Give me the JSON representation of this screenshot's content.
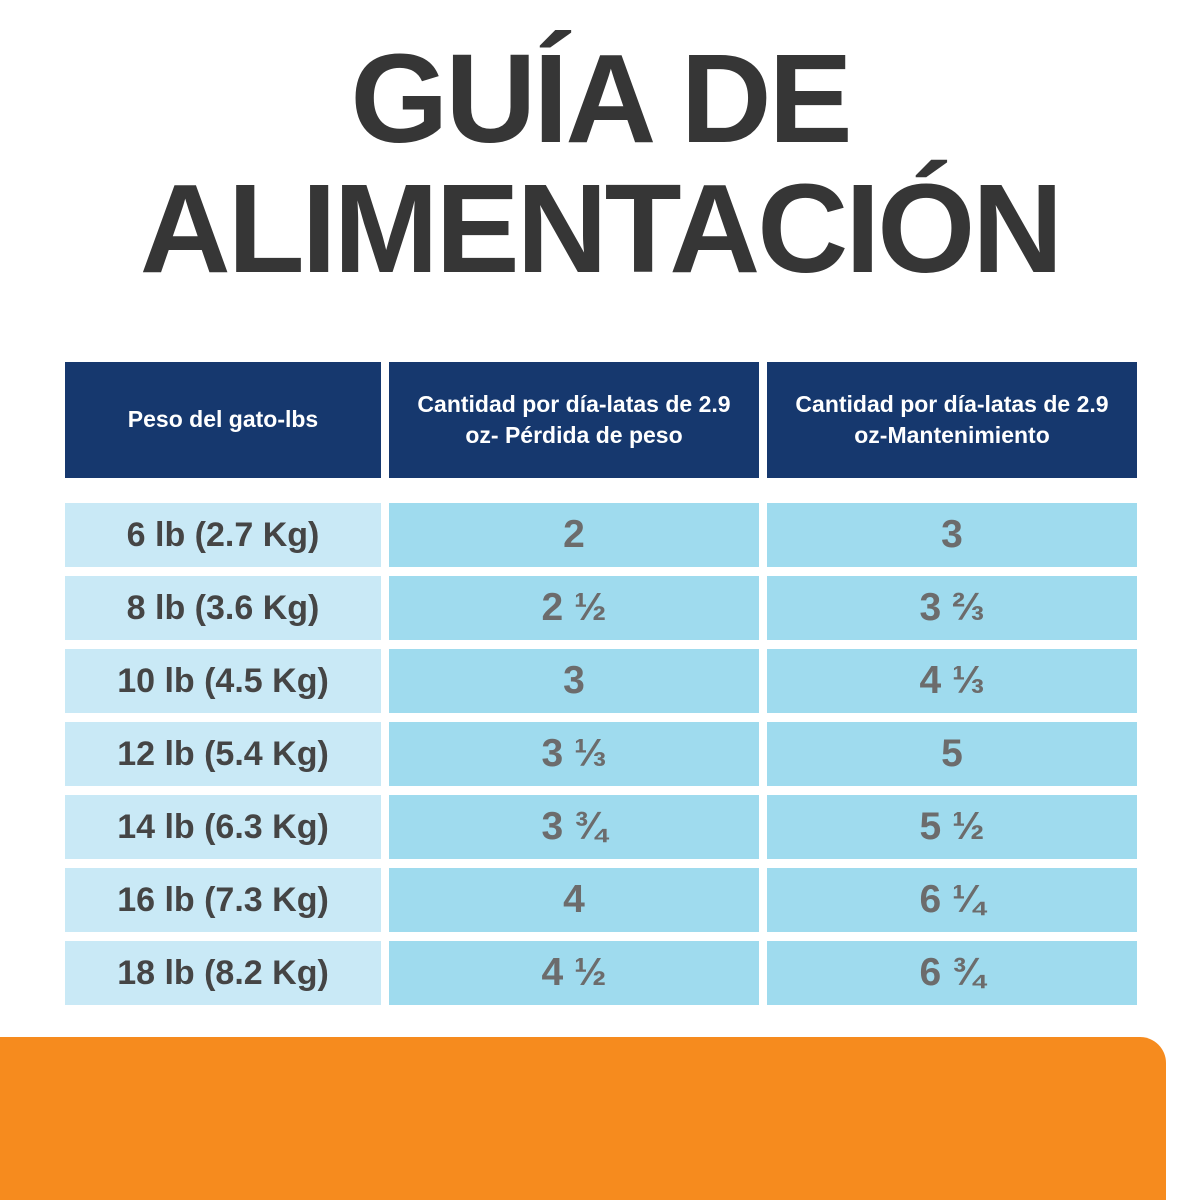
{
  "title": {
    "line1": "GUÍA DE",
    "line2": "ALIMENTACIÓN"
  },
  "chart_data": {
    "type": "table",
    "title": "GUÍA DE ALIMENTACIÓN",
    "columns": [
      "Peso del gato-lbs",
      "Cantidad por día-latas de 2.9 oz- Pérdida de peso",
      "Cantidad por día-latas de 2.9 oz-Mantenimiento"
    ],
    "rows": [
      [
        "6 lb (2.7 Kg)",
        "2",
        "3"
      ],
      [
        "8 lb (3.6 Kg)",
        "2 ½",
        "3 ⅔"
      ],
      [
        "10 lb (4.5 Kg)",
        "3",
        "4 ⅓"
      ],
      [
        "12 lb (5.4 Kg)",
        "3 ⅓",
        "5"
      ],
      [
        "14 lb (6.3 Kg)",
        "3 ¾",
        "5 ½"
      ],
      [
        "16 lb (7.3 Kg)",
        "4",
        "6 ¼"
      ],
      [
        "18 lb (8.2 Kg)",
        "4 ½",
        "6 ¾"
      ]
    ]
  },
  "colors": {
    "title_text": "#363636",
    "header_navy": "#16386E",
    "row_weight_bg": "#C9E9F6",
    "row_value_bg": "#9FDBEE",
    "label_text": "#454545",
    "value_text": "#6C6C6C",
    "accent_orange": "#F68B1E"
  }
}
